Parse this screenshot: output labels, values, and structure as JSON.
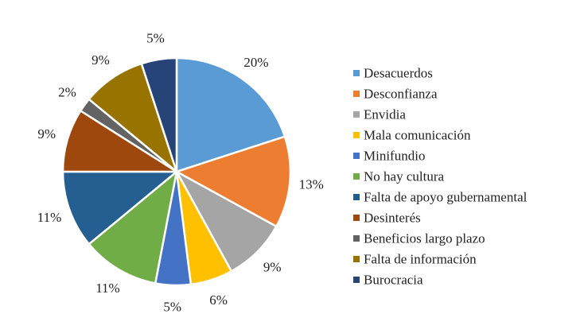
{
  "chart_data": {
    "type": "pie",
    "title": "",
    "unit": "%",
    "legend_position": "right",
    "start_angle_deg": 0,
    "direction": "clockwise",
    "slices": [
      {
        "label": "Desacuerdos",
        "value": 20,
        "color": "#5B9BD5"
      },
      {
        "label": "Desconfianza",
        "value": 13,
        "color": "#ED7D31"
      },
      {
        "label": "Envidia",
        "value": 9,
        "color": "#A5A5A5"
      },
      {
        "label": "Mala comunicación",
        "value": 6,
        "color": "#FFC000"
      },
      {
        "label": "Minifundio",
        "value": 5,
        "color": "#4472C4"
      },
      {
        "label": "No hay cultura",
        "value": 11,
        "color": "#70AD47"
      },
      {
        "label": "Falta de apoyo gubernamental",
        "value": 11,
        "color": "#255E91"
      },
      {
        "label": "Desinterés",
        "value": 9,
        "color": "#9E480E"
      },
      {
        "label": "Beneficios largo plazo",
        "value": 2,
        "color": "#636363"
      },
      {
        "label": "Falta de información",
        "value": 9,
        "color": "#997300"
      },
      {
        "label": "Burocracia",
        "value": 5,
        "color": "#264478"
      }
    ]
  }
}
